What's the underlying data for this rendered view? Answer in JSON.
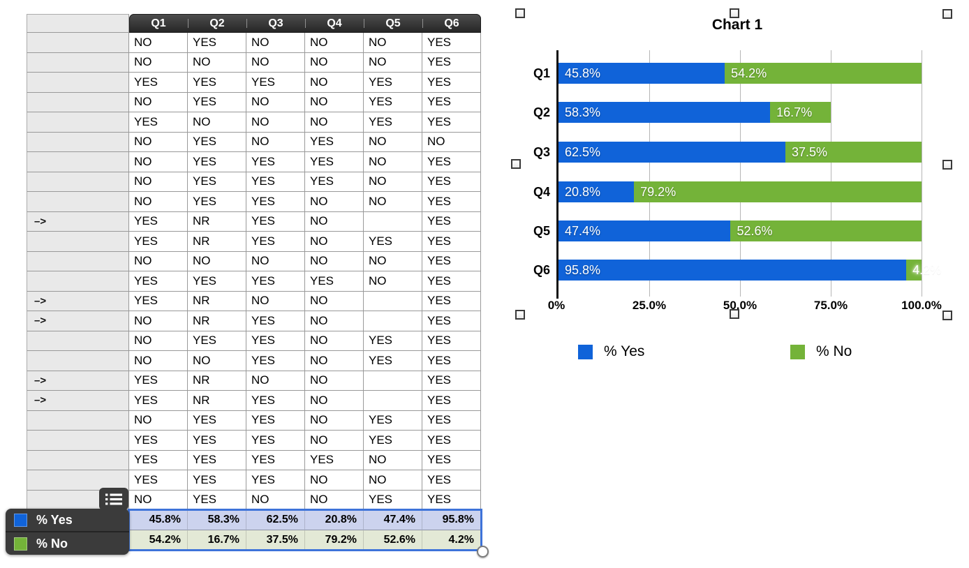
{
  "table": {
    "header": [
      "Q1",
      "Q2",
      "Q3",
      "Q4",
      "Q5",
      "Q6"
    ],
    "arrow_marker": "–>",
    "rows": [
      {
        "arrow": false,
        "values": [
          "NO",
          "YES",
          "NO",
          "NO",
          "NO",
          "YES"
        ]
      },
      {
        "arrow": false,
        "values": [
          "NO",
          "NO",
          "NO",
          "NO",
          "NO",
          "YES"
        ]
      },
      {
        "arrow": false,
        "values": [
          "YES",
          "YES",
          "YES",
          "NO",
          "YES",
          "YES"
        ]
      },
      {
        "arrow": false,
        "values": [
          "NO",
          "YES",
          "NO",
          "NO",
          "YES",
          "YES"
        ]
      },
      {
        "arrow": false,
        "values": [
          "YES",
          "NO",
          "NO",
          "NO",
          "YES",
          "YES"
        ]
      },
      {
        "arrow": false,
        "values": [
          "NO",
          "YES",
          "NO",
          "YES",
          "NO",
          "NO"
        ]
      },
      {
        "arrow": false,
        "values": [
          "NO",
          "YES",
          "YES",
          "YES",
          "NO",
          "YES"
        ]
      },
      {
        "arrow": false,
        "values": [
          "NO",
          "YES",
          "YES",
          "YES",
          "NO",
          "YES"
        ]
      },
      {
        "arrow": false,
        "values": [
          "NO",
          "YES",
          "YES",
          "NO",
          "NO",
          "YES"
        ]
      },
      {
        "arrow": true,
        "values": [
          "YES",
          "NR",
          "YES",
          "NO",
          "",
          "YES"
        ]
      },
      {
        "arrow": false,
        "values": [
          "YES",
          "NR",
          "YES",
          "NO",
          "YES",
          "YES"
        ]
      },
      {
        "arrow": false,
        "values": [
          "NO",
          "NO",
          "NO",
          "NO",
          "NO",
          "YES"
        ]
      },
      {
        "arrow": false,
        "values": [
          "YES",
          "YES",
          "YES",
          "YES",
          "NO",
          "YES"
        ]
      },
      {
        "arrow": true,
        "values": [
          "YES",
          "NR",
          "NO",
          "NO",
          "",
          "YES"
        ]
      },
      {
        "arrow": true,
        "values": [
          "NO",
          "NR",
          "YES",
          "NO",
          "",
          "YES"
        ]
      },
      {
        "arrow": false,
        "values": [
          "NO",
          "YES",
          "YES",
          "NO",
          "YES",
          "YES"
        ]
      },
      {
        "arrow": false,
        "values": [
          "NO",
          "NO",
          "YES",
          "NO",
          "YES",
          "YES"
        ]
      },
      {
        "arrow": true,
        "values": [
          "YES",
          "NR",
          "NO",
          "NO",
          "",
          "YES"
        ]
      },
      {
        "arrow": true,
        "values": [
          "YES",
          "NR",
          "YES",
          "NO",
          "",
          "YES"
        ]
      },
      {
        "arrow": false,
        "values": [
          "NO",
          "YES",
          "YES",
          "NO",
          "YES",
          "YES"
        ]
      },
      {
        "arrow": false,
        "values": [
          "YES",
          "YES",
          "YES",
          "NO",
          "YES",
          "YES"
        ]
      },
      {
        "arrow": false,
        "values": [
          "YES",
          "YES",
          "YES",
          "YES",
          "NO",
          "YES"
        ]
      },
      {
        "arrow": false,
        "values": [
          "YES",
          "YES",
          "YES",
          "NO",
          "NO",
          "YES"
        ]
      },
      {
        "arrow": false,
        "values": [
          "NO",
          "YES",
          "NO",
          "NO",
          "YES",
          "YES"
        ]
      }
    ],
    "summary_rows": [
      {
        "label": "% Yes",
        "color": "#1063d9",
        "row_bg": "#ccd3ee",
        "values": [
          "45.8%",
          "58.3%",
          "62.5%",
          "20.8%",
          "47.4%",
          "95.8%"
        ]
      },
      {
        "label": "% No",
        "color": "#74b339",
        "row_bg": "#e3e9d6",
        "values": [
          "54.2%",
          "16.7%",
          "37.5%",
          "79.2%",
          "52.6%",
          "4.2%"
        ]
      }
    ]
  },
  "chart_data": {
    "type": "bar",
    "orientation": "horizontal",
    "stacked": true,
    "title": "Chart 1",
    "categories": [
      "Q1",
      "Q2",
      "Q3",
      "Q4",
      "Q5",
      "Q6"
    ],
    "series": [
      {
        "name": "% Yes",
        "color": "#1063d9",
        "values": [
          45.8,
          58.3,
          62.5,
          20.8,
          47.4,
          95.8
        ],
        "labels": [
          "45.8%",
          "58.3%",
          "62.5%",
          "20.8%",
          "47.4%",
          "95.8%"
        ]
      },
      {
        "name": "% No",
        "color": "#74b339",
        "values": [
          54.2,
          16.7,
          37.5,
          79.2,
          52.6,
          4.2
        ],
        "labels": [
          "54.2%",
          "16.7%",
          "37.5%",
          "79.2%",
          "52.6%",
          "4.2%"
        ]
      }
    ],
    "x_ticks": [
      "0%",
      "25.0%",
      "50.0%",
      "75.0%",
      "100.0%"
    ],
    "xlim": [
      0,
      100
    ],
    "grid": true,
    "legend_position": "bottom"
  },
  "colors": {
    "yes_blue": "#1063d9",
    "no_green": "#74b339",
    "selection_blue": "#3e73d9"
  }
}
